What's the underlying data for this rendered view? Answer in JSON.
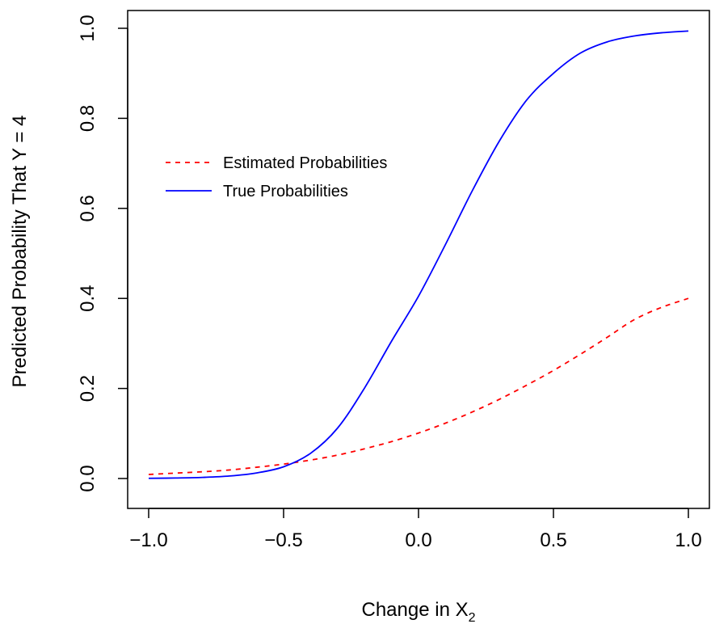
{
  "chart_data": {
    "type": "line",
    "title": "",
    "xlabel": "Change in X",
    "xlabel_subscript": "2",
    "ylabel": "Predicted Probability That Y = 4",
    "xlim": [
      -1.0,
      1.0
    ],
    "ylim": [
      0.0,
      1.0
    ],
    "grid": false,
    "legend_position": "upper-left",
    "x_ticks": [
      -1.0,
      -0.5,
      0.0,
      0.5,
      1.0
    ],
    "x_tick_labels": [
      "−1.0",
      "−0.5",
      "0.0",
      "0.5",
      "1.0"
    ],
    "y_ticks": [
      0.0,
      0.2,
      0.4,
      0.6,
      0.8,
      1.0
    ],
    "y_tick_labels": [
      "0.0",
      "0.2",
      "0.4",
      "0.6",
      "0.8",
      "1.0"
    ],
    "x": [
      -1.0,
      -0.9,
      -0.8,
      -0.7,
      -0.6,
      -0.5,
      -0.4,
      -0.3,
      -0.2,
      -0.1,
      0.0,
      0.1,
      0.2,
      0.3,
      0.4,
      0.5,
      0.6,
      0.7,
      0.8,
      0.9,
      1.0
    ],
    "series": [
      {
        "name": "Estimated Probabilities",
        "color": "#ff0000",
        "dash": "dashed",
        "values": [
          0.009,
          0.012,
          0.015,
          0.019,
          0.025,
          0.032,
          0.041,
          0.052,
          0.066,
          0.082,
          0.101,
          0.123,
          0.148,
          0.176,
          0.207,
          0.24,
          0.276,
          0.314,
          0.353,
          0.38,
          0.4
        ]
      },
      {
        "name": "True Probabilities",
        "color": "#0000ff",
        "dash": "solid",
        "values": [
          0.0005,
          0.0011,
          0.0025,
          0.0056,
          0.0124,
          0.026,
          0.056,
          0.112,
          0.201,
          0.305,
          0.405,
          0.52,
          0.64,
          0.75,
          0.84,
          0.9,
          0.945,
          0.97,
          0.983,
          0.99,
          0.994
        ]
      }
    ]
  }
}
